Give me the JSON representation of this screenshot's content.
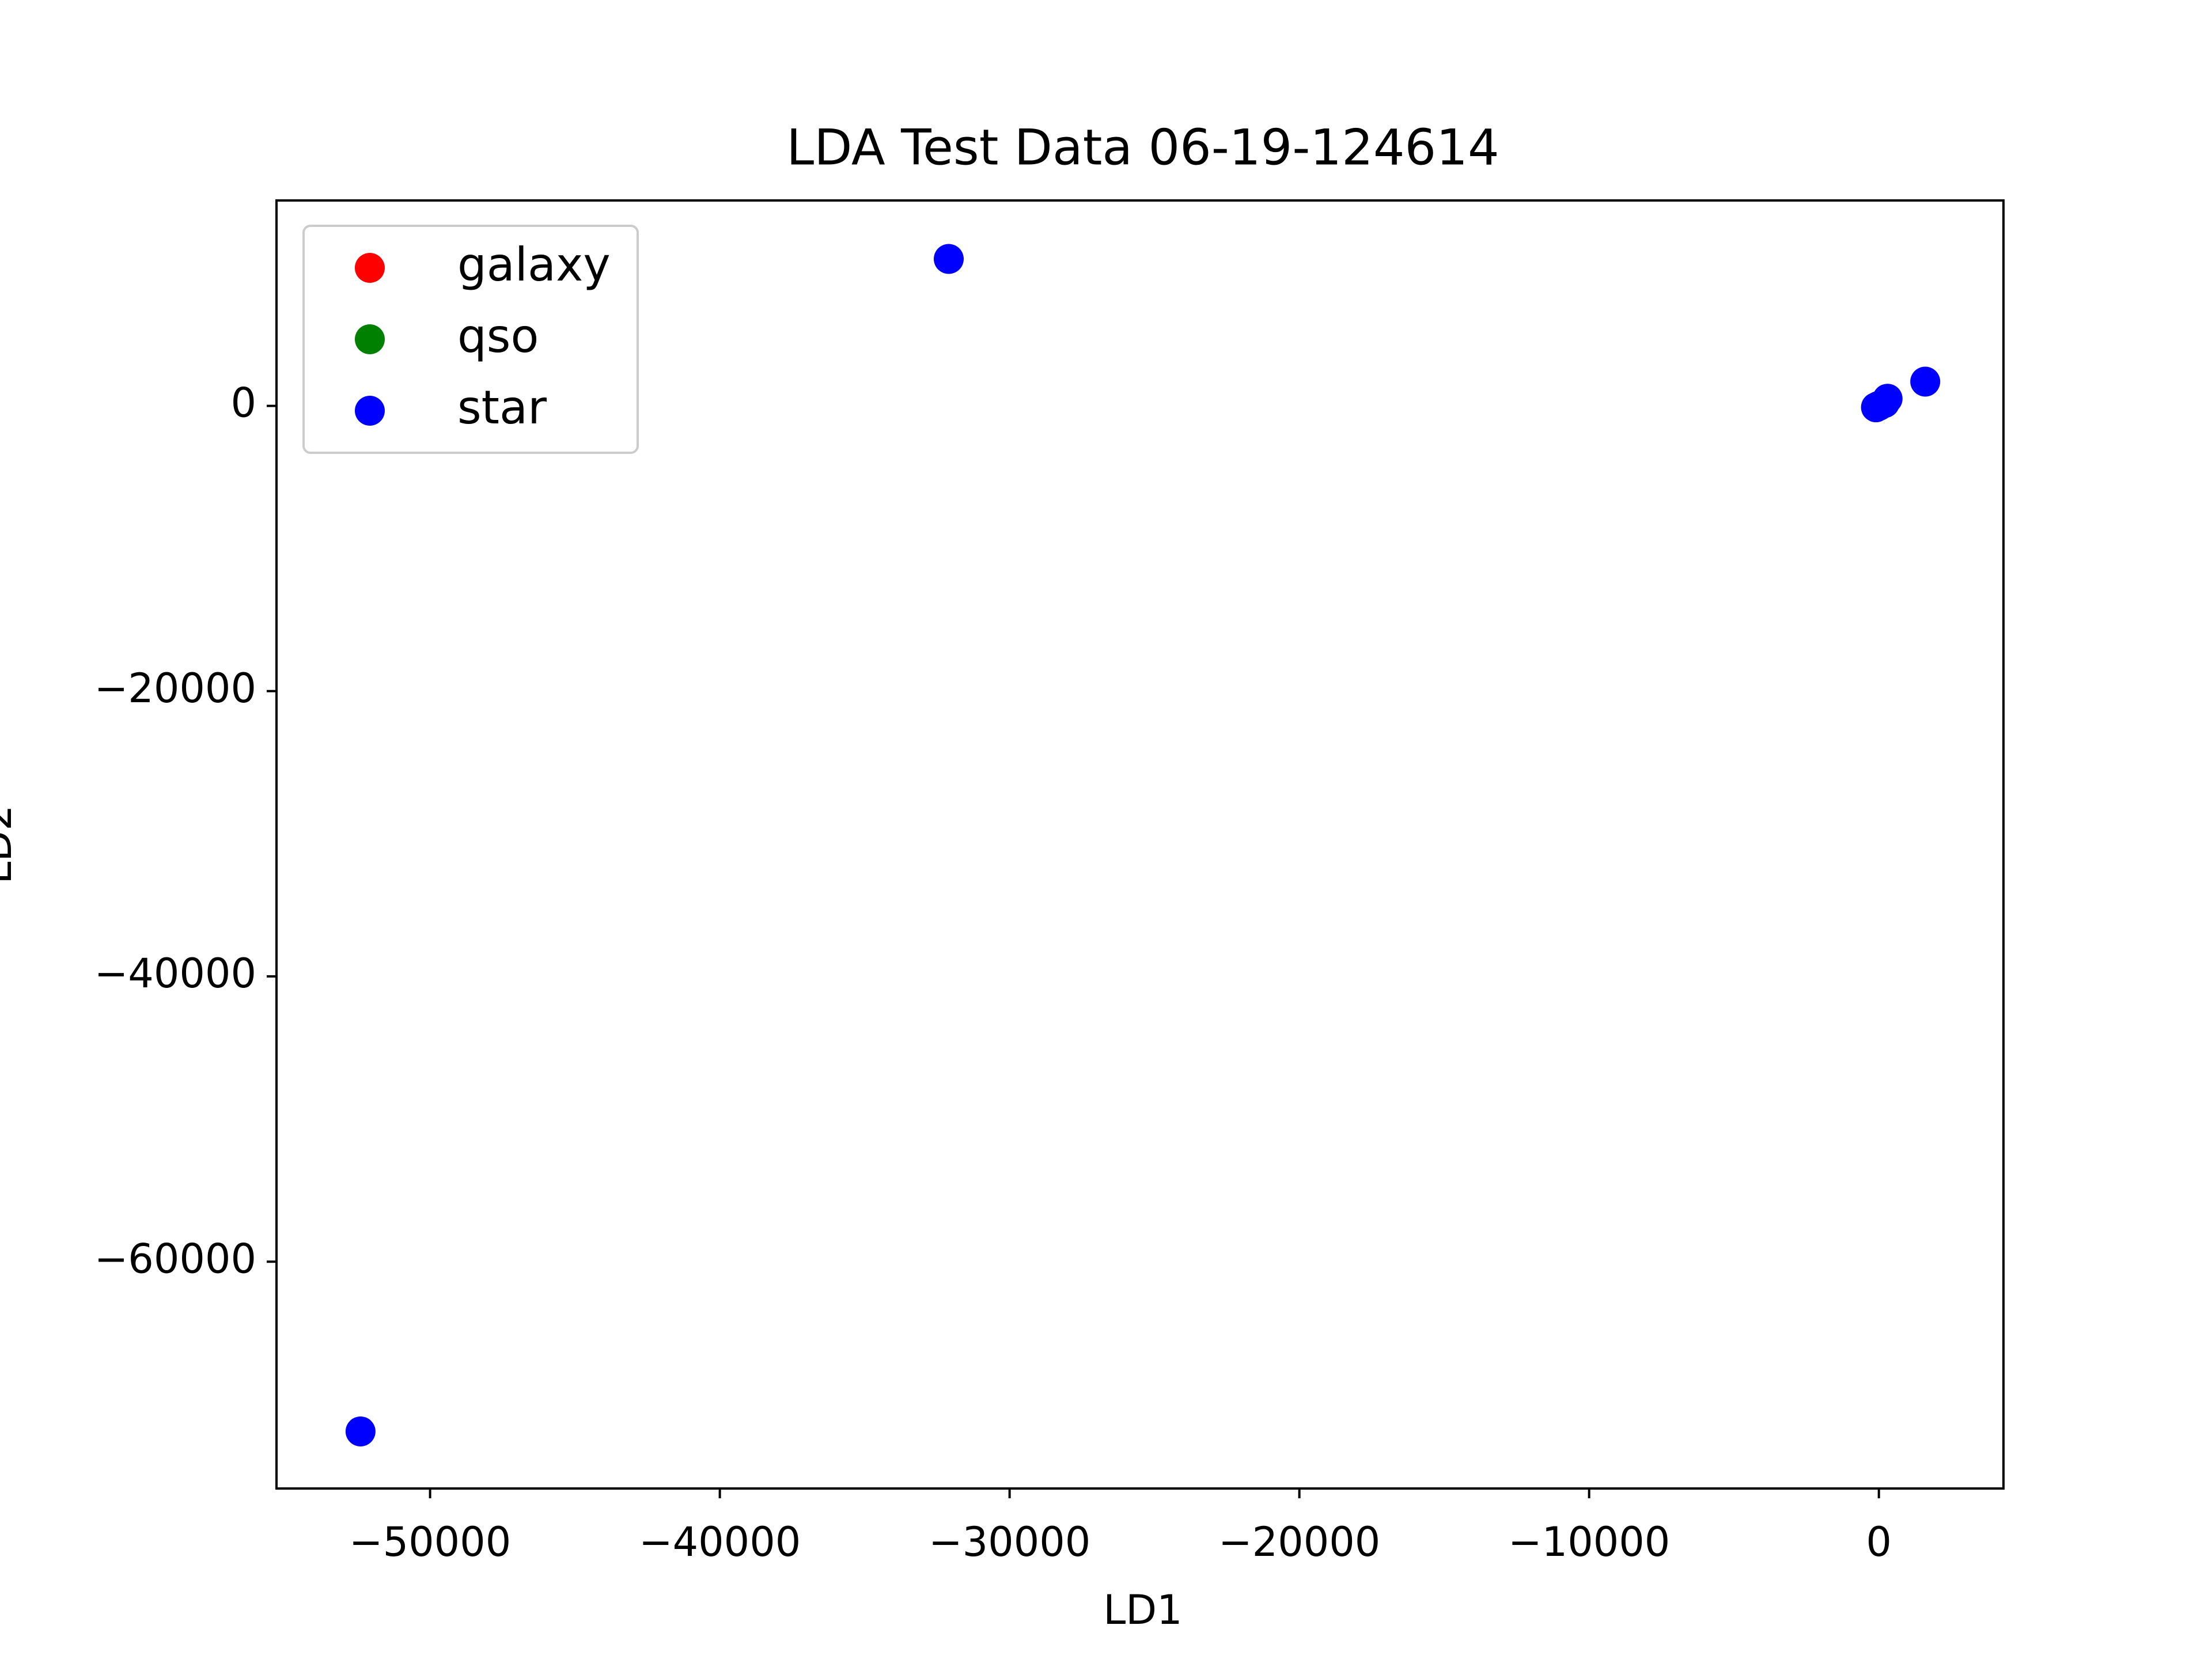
{
  "chart_data": {
    "type": "scatter",
    "title": "LDA Test Data 06-19-124614",
    "xlabel": "LD1",
    "ylabel": "LD2",
    "xlim": [
      -55300,
      4300
    ],
    "ylim": [
      -75900,
      14400
    ],
    "xticks": [
      {
        "value": -50000,
        "label": "−50000"
      },
      {
        "value": -40000,
        "label": "−40000"
      },
      {
        "value": -30000,
        "label": "−30000"
      },
      {
        "value": -20000,
        "label": "−20000"
      },
      {
        "value": -10000,
        "label": "−10000"
      },
      {
        "value": 0,
        "label": "0"
      }
    ],
    "yticks": [
      {
        "value": 0,
        "label": "0"
      },
      {
        "value": -20000,
        "label": "−20000"
      },
      {
        "value": -40000,
        "label": "−40000"
      },
      {
        "value": -60000,
        "label": "−60000"
      }
    ],
    "legend_position": "top-left",
    "grid": false,
    "series": [
      {
        "name": "galaxy",
        "color": "#ff0000",
        "points": []
      },
      {
        "name": "qso",
        "color": "#008000",
        "points": []
      },
      {
        "name": "star",
        "color": "#0000ff",
        "points": [
          {
            "x": -32100,
            "y": 10300
          },
          {
            "x": -52400,
            "y": -71900
          },
          {
            "x": 1600,
            "y": 1700
          },
          {
            "x": 300,
            "y": 500
          },
          {
            "x": 200,
            "y": 200
          },
          {
            "x": 0,
            "y": 0
          },
          {
            "x": -100,
            "y": -100
          }
        ]
      }
    ]
  }
}
